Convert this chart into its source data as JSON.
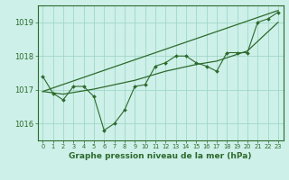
{
  "xlabel": "Graphe pression niveau de la mer (hPa)",
  "bg_color": "#cdf0e8",
  "line_color": "#2d6a2d",
  "grid_color": "#a0d8c8",
  "ylim": [
    1015.5,
    1019.5
  ],
  "xlim": [
    -0.5,
    23.5
  ],
  "yticks": [
    1016,
    1017,
    1018,
    1019
  ],
  "xticks": [
    0,
    1,
    2,
    3,
    4,
    5,
    6,
    7,
    8,
    9,
    10,
    11,
    12,
    13,
    14,
    15,
    16,
    17,
    18,
    19,
    20,
    21,
    22,
    23
  ],
  "main_data": {
    "x": [
      0,
      1,
      2,
      3,
      4,
      5,
      6,
      7,
      8,
      9,
      10,
      11,
      12,
      13,
      14,
      15,
      16,
      17,
      18,
      19,
      20,
      21,
      22,
      23
    ],
    "y": [
      1017.4,
      1016.9,
      1016.7,
      1017.1,
      1017.1,
      1016.8,
      1015.8,
      1016.0,
      1016.4,
      1017.1,
      1017.15,
      1017.7,
      1017.8,
      1018.0,
      1018.0,
      1017.8,
      1017.7,
      1017.55,
      1018.1,
      1018.1,
      1018.1,
      1019.0,
      1019.1,
      1019.3
    ]
  },
  "trend_line": {
    "x": [
      0,
      23
    ],
    "y": [
      1016.95,
      1019.35
    ]
  },
  "smooth_line": {
    "x": [
      0,
      2,
      5,
      9,
      12,
      15,
      17,
      20,
      23
    ],
    "y": [
      1016.95,
      1016.87,
      1017.02,
      1017.28,
      1017.55,
      1017.75,
      1017.85,
      1018.15,
      1019.0
    ]
  }
}
